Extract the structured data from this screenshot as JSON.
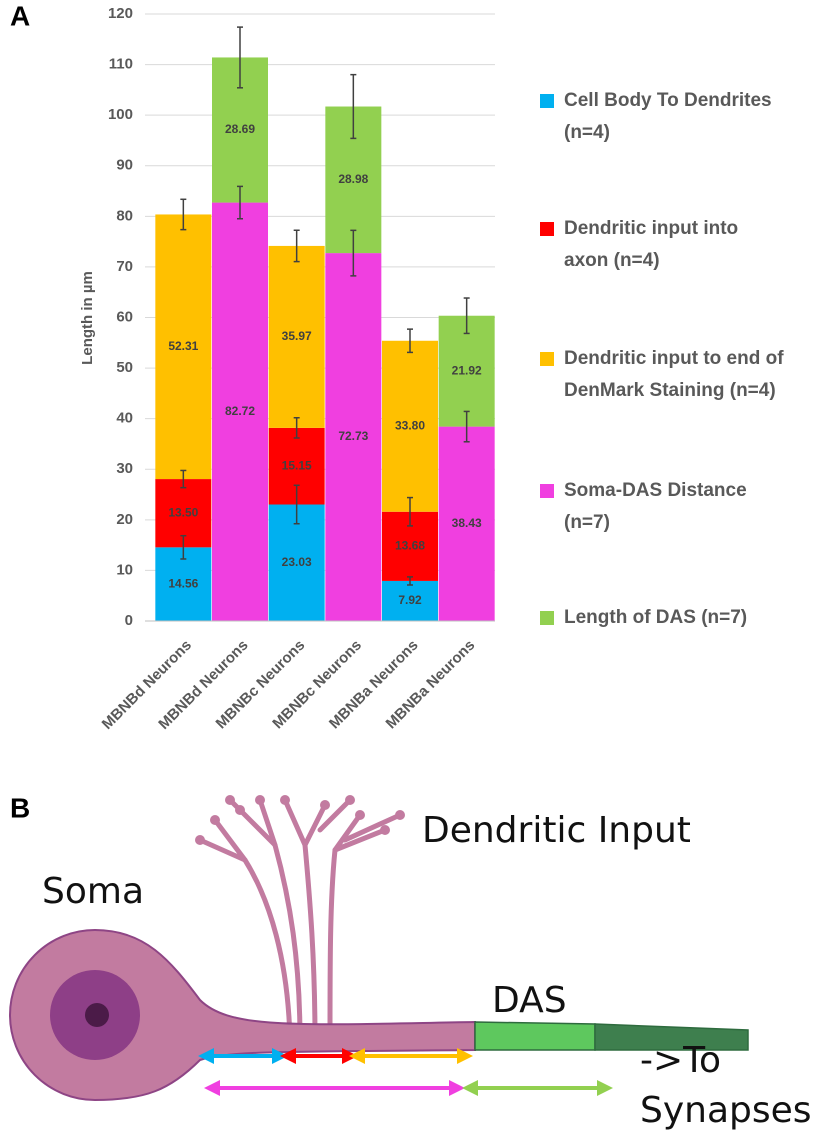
{
  "chart_data": {
    "type": "stacked-bar",
    "panel_label": "A",
    "y_label": "Length in µm",
    "categories": [
      "MBNBd Neurons",
      "MBNBd Neurons",
      "MBNBc Neurons",
      "MBNBc Neurons",
      "MBNBa Neurons",
      "MBNBa Neurons"
    ],
    "series": [
      {
        "name": "Cell Body To Dendrites (n=4)",
        "color": "#00b0f0",
        "values": [
          14.56,
          null,
          23.03,
          null,
          7.92,
          null
        ],
        "value_labels": [
          "14.56",
          null,
          "23.03",
          null,
          "7.92",
          null
        ],
        "errors": [
          2.3,
          null,
          3.8,
          null,
          0.8,
          null
        ]
      },
      {
        "name": "Dendritic input into axon (n=4)",
        "color": "#ff0000",
        "values": [
          13.5,
          null,
          15.15,
          null,
          13.68,
          null
        ],
        "value_labels": [
          "13.50",
          null,
          "15.15",
          null,
          "13.68",
          null
        ],
        "errors": [
          1.7,
          null,
          2.0,
          null,
          2.8,
          null
        ]
      },
      {
        "name": "Dendritic input to end of DenMark Staining (n=4)",
        "color": "#ffc000",
        "values": [
          52.31,
          null,
          35.97,
          null,
          33.8,
          null
        ],
        "value_labels": [
          "52.31",
          null,
          "35.97",
          null,
          "33.80",
          null
        ],
        "errors": [
          3.0,
          null,
          3.1,
          null,
          2.3,
          null
        ]
      },
      {
        "name": "Soma-DAS Distance (n=7)",
        "color": "#f03fe0",
        "values": [
          null,
          82.72,
          null,
          72.73,
          null,
          38.43
        ],
        "value_labels": [
          null,
          "82.72",
          null,
          "72.73",
          null,
          "38.43"
        ],
        "errors": [
          null,
          3.2,
          null,
          4.5,
          null,
          3.0
        ]
      },
      {
        "name": "Length of DAS (n=7)",
        "color": "#92d050",
        "values": [
          null,
          28.69,
          null,
          28.98,
          null,
          21.92
        ],
        "value_labels": [
          null,
          "28.69",
          null,
          "28.98",
          null,
          "21.92"
        ],
        "errors": [
          null,
          6.0,
          null,
          6.3,
          null,
          3.5
        ]
      }
    ],
    "ylim": [
      0,
      120
    ],
    "yticks": [
      0,
      10,
      20,
      30,
      40,
      50,
      60,
      70,
      80,
      90,
      100,
      110,
      120
    ],
    "grid": true
  },
  "diagram": {
    "panel_label": "B",
    "labels": {
      "dendritic_input": "Dendritic Input",
      "soma": "Soma",
      "das": "DAS",
      "to": "->To",
      "synapses": "Synapses"
    }
  }
}
